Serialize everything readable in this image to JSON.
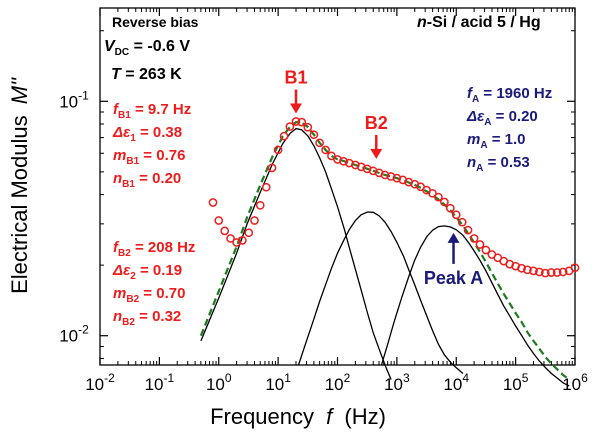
{
  "chart_data": {
    "type": "scatter",
    "xscale": "log",
    "yscale": "log",
    "xlim": [
      0.01,
      1000000
    ],
    "ylim": [
      0.0075,
      0.25
    ],
    "xlabel": "Frequency",
    "xlabel_var": "f",
    "xlabel_unit": "(Hz)",
    "ylabel": "Electrical Modulus",
    "ylabel_var": "M\"",
    "x_ticks": [
      {
        "value": 0.01,
        "base": "10",
        "exp": "-2"
      },
      {
        "value": 0.1,
        "base": "10",
        "exp": "-1"
      },
      {
        "value": 1,
        "base": "10",
        "exp": "0"
      },
      {
        "value": 10,
        "base": "10",
        "exp": "1"
      },
      {
        "value": 100,
        "base": "10",
        "exp": "2"
      },
      {
        "value": 1000,
        "base": "10",
        "exp": "3"
      },
      {
        "value": 10000,
        "base": "10",
        "exp": "4"
      },
      {
        "value": 100000,
        "base": "10",
        "exp": "5"
      },
      {
        "value": 1000000,
        "base": "10",
        "exp": "6"
      }
    ],
    "y_ticks": [
      {
        "value": 0.01,
        "base": "10",
        "exp": "-2"
      },
      {
        "value": 0.1,
        "base": "10",
        "exp": "-1"
      }
    ],
    "measured": {
      "name": "data",
      "color": "#ee1c1c",
      "marker": "open-circle",
      "x": [
        0.8,
        1.0,
        1.26,
        1.58,
        2.0,
        2.5,
        3.2,
        4.0,
        5.0,
        6.3,
        7.9,
        10,
        12.6,
        15.8,
        20,
        25,
        31.6,
        40,
        50,
        63,
        79,
        100,
        126,
        158,
        200,
        251,
        316,
        398,
        501,
        631,
        794,
        1000,
        1260,
        1580,
        2000,
        2510,
        3160,
        3980,
        5010,
        6310,
        7940,
        10000,
        12600,
        15800,
        20000,
        25100,
        31600,
        39800,
        50100,
        63100,
        79400,
        100000,
        126000,
        158000,
        200000,
        251000,
        316000,
        398000,
        501000,
        631000,
        794000,
        1000000
      ],
      "y": [
        0.037,
        0.031,
        0.028,
        0.026,
        0.025,
        0.0255,
        0.0275,
        0.031,
        0.036,
        0.043,
        0.052,
        0.062,
        0.071,
        0.078,
        0.082,
        0.0815,
        0.0775,
        0.072,
        0.0665,
        0.062,
        0.0585,
        0.0565,
        0.0555,
        0.0545,
        0.0535,
        0.0525,
        0.0515,
        0.0505,
        0.0495,
        0.0485,
        0.0478,
        0.047,
        0.0462,
        0.0452,
        0.0443,
        0.0432,
        0.0418,
        0.0405,
        0.039,
        0.0372,
        0.035,
        0.0328,
        0.0305,
        0.0282,
        0.026,
        0.0245,
        0.0232,
        0.0222,
        0.0215,
        0.0208,
        0.0202,
        0.0198,
        0.0194,
        0.0191,
        0.0189,
        0.0187,
        0.0185,
        0.0186,
        0.0186,
        0.0187,
        0.0189,
        0.0195
      ]
    },
    "fit_total": {
      "color": "#1e7b1e",
      "style": "dashed",
      "x": [
        0.5,
        1,
        2,
        3,
        5,
        8,
        12,
        16,
        20,
        25,
        32,
        40,
        50,
        63,
        80,
        100,
        130,
        160,
        200,
        250,
        320,
        400,
        500,
        630,
        800,
        1000,
        1300,
        1600,
        2000,
        2500,
        3200,
        4000,
        5000,
        6300,
        8000,
        10000,
        13000,
        16000,
        20000,
        25000,
        32000,
        40000,
        50000,
        63000,
        80000,
        100000,
        130000,
        160000,
        200000,
        250000,
        320000,
        400000,
        500000,
        630000,
        800000
      ],
      "y": [
        0.01,
        0.0155,
        0.024,
        0.032,
        0.044,
        0.058,
        0.071,
        0.078,
        0.0815,
        0.081,
        0.0775,
        0.072,
        0.0665,
        0.062,
        0.0585,
        0.0565,
        0.0555,
        0.0545,
        0.0535,
        0.0525,
        0.0515,
        0.0505,
        0.0495,
        0.0485,
        0.0478,
        0.047,
        0.046,
        0.045,
        0.044,
        0.0428,
        0.0412,
        0.0398,
        0.0382,
        0.0363,
        0.0342,
        0.032,
        0.0295,
        0.0272,
        0.025,
        0.0228,
        0.0205,
        0.0185,
        0.0167,
        0.0151,
        0.0137,
        0.0125,
        0.0113,
        0.0103,
        0.0095,
        0.0088,
        0.0081,
        0.0076,
        0.0072,
        0.0068,
        0.0065
      ]
    },
    "components": [
      {
        "id": "B1",
        "color": "#000000",
        "x": [
          0.5,
          1,
          2,
          3,
          5,
          8,
          12,
          16,
          20,
          25,
          32,
          40,
          50,
          63,
          80,
          100,
          130,
          160,
          200,
          250,
          320,
          400,
          500,
          630,
          800
        ],
        "y": [
          0.0095,
          0.0145,
          0.0225,
          0.03,
          0.041,
          0.054,
          0.066,
          0.073,
          0.0765,
          0.0755,
          0.071,
          0.0645,
          0.0575,
          0.05,
          0.042,
          0.0355,
          0.0285,
          0.0235,
          0.0192,
          0.0157,
          0.0125,
          0.0103,
          0.0088,
          0.0075,
          0.0065
        ]
      },
      {
        "id": "B2",
        "color": "#000000",
        "x": [
          22,
          30,
          40,
          50,
          63,
          80,
          100,
          130,
          160,
          200,
          250,
          320,
          400,
          500,
          630,
          800,
          1000,
          1300,
          1600,
          2000,
          2500,
          3200,
          4000,
          5000,
          6300,
          8000,
          10000,
          13000
        ],
        "y": [
          0.0075,
          0.0095,
          0.0118,
          0.014,
          0.0165,
          0.0195,
          0.0225,
          0.0258,
          0.0285,
          0.031,
          0.0328,
          0.0337,
          0.0336,
          0.0325,
          0.0305,
          0.0278,
          0.025,
          0.0218,
          0.019,
          0.0165,
          0.0142,
          0.0121,
          0.0105,
          0.0092,
          0.0083,
          0.0077,
          0.0073,
          0.0069
        ]
      },
      {
        "id": "A",
        "color": "#000000",
        "x": [
          550,
          700,
          900,
          1200,
          1600,
          2000,
          2500,
          3200,
          4000,
          5000,
          6300,
          8000,
          10000,
          13000,
          16000,
          20000,
          25000,
          32000,
          40000,
          50000,
          63000,
          80000,
          100000,
          130000,
          160000,
          200000,
          250000,
          320000,
          400000,
          500000,
          630000,
          800000
        ],
        "y": [
          0.0075,
          0.0092,
          0.0115,
          0.0145,
          0.018,
          0.021,
          0.0238,
          0.0265,
          0.0282,
          0.0292,
          0.0294,
          0.0291,
          0.0283,
          0.0268,
          0.025,
          0.023,
          0.021,
          0.0188,
          0.0168,
          0.015,
          0.0134,
          0.0121,
          0.011,
          0.0099,
          0.0091,
          0.0084,
          0.0078,
          0.0073,
          0.0069,
          0.0066,
          0.0063,
          0.0061
        ]
      }
    ],
    "peak_labels": [
      {
        "id": "B1",
        "text": "B1",
        "color": "#ee1c1c",
        "x": 20,
        "y": 0.082
      },
      {
        "id": "B2",
        "text": "B2",
        "color": "#ee1c1c",
        "x": 450,
        "y": 0.0525
      },
      {
        "id": "A",
        "text": "Peak A",
        "color": "#1a1a7a",
        "x": 9000,
        "y": 0.0294
      }
    ]
  },
  "annotations": {
    "conditions": {
      "line1": "Reverse bias",
      "vdc_sym": "V",
      "vdc_sub": "DC",
      "vdc_val": " = -0.6 V",
      "t_sym": "T",
      "t_val": " = 263 K"
    },
    "sample": {
      "n": "n",
      "rest": "-Si / acid 5 / Hg"
    },
    "params_b1": [
      {
        "sym": "f",
        "sub": "B1",
        "val": " = 9.7 Hz"
      },
      {
        "sym": "Δε",
        "sub": "1",
        "val": " = 0.38"
      },
      {
        "sym": "m",
        "sub": "B1",
        "val": " = 0.76"
      },
      {
        "sym": "n",
        "sub": "B1",
        "val": " = 0.20"
      }
    ],
    "params_b2": [
      {
        "sym": "f",
        "sub": "B2",
        "val": " = 208 Hz"
      },
      {
        "sym": "Δε",
        "sub": "2",
        "val": " = 0.19"
      },
      {
        "sym": "m",
        "sub": "B2",
        "val": " = 0.70"
      },
      {
        "sym": "n",
        "sub": "B2",
        "val": " = 0.32"
      }
    ],
    "params_a": [
      {
        "sym": "f",
        "sub": "A",
        "val": " = 1960 Hz"
      },
      {
        "sym": "Δε",
        "sub": "A",
        "val": " = 0.20"
      },
      {
        "sym": "m",
        "sub": "A",
        "val": " = 1.0"
      },
      {
        "sym": "n",
        "sub": "A",
        "val": " = 0.53"
      }
    ]
  }
}
